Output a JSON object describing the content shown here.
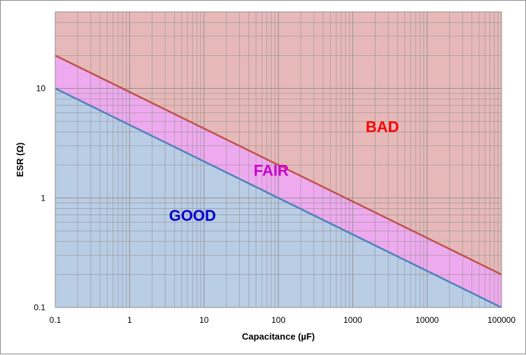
{
  "chart_data": {
    "type": "line",
    "xlabel": "Capacitance (µF)",
    "ylabel": "ESR  (Ω)",
    "x_scale": "log",
    "y_scale": "log",
    "xlim": [
      0.1,
      100000
    ],
    "ylim": [
      0.1,
      50
    ],
    "grid": true,
    "x_ticks": [
      "0.1",
      "1",
      "10",
      "100",
      "1000",
      "10000",
      "100000"
    ],
    "y_ticks": [
      "0.1",
      "1",
      "10"
    ],
    "lines": [
      {
        "x": [
          0.1,
          100000
        ],
        "y": [
          20,
          0.2
        ],
        "color": "#c0504d"
      },
      {
        "x": [
          0.1,
          100000
        ],
        "y": [
          10,
          0.1
        ],
        "color": "#4f81bd"
      }
    ],
    "regions": [
      {
        "label": "BAD",
        "color": "#e6b9b8",
        "text_color": "#ff0000",
        "label_x": 2500,
        "label_y": 4.0
      },
      {
        "label": "FAIR",
        "color": "#eeaaee",
        "text_color": "#cc00cc",
        "label_x": 80,
        "label_y": 1.6
      },
      {
        "label": "GOOD",
        "color": "#b9cde5",
        "text_color": "#0000cc",
        "label_x": 7,
        "label_y": 0.62
      }
    ],
    "grid_color": "#8c8c8c"
  }
}
